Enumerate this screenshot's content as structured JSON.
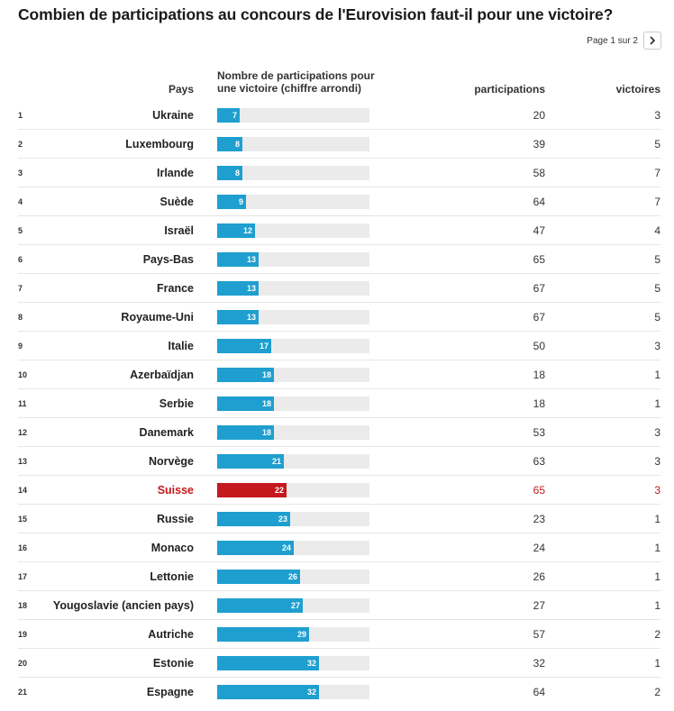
{
  "title": "Combien de participations au concours de l'Eurovision faut-il pour une victoire?",
  "pager": {
    "label": "Page 1 sur 2",
    "next_icon": "chevron-right-icon"
  },
  "colors": {
    "bar": "#1f9fcf",
    "highlight": "#c4191d",
    "track": "#ebebeb"
  },
  "columns": {
    "pays": "Pays",
    "npv": "Nombre de participations pour une victoire (chiffre arrondi)",
    "participations": "participations",
    "victoires": "victoires"
  },
  "chart_data": {
    "type": "table",
    "title": "Combien de participations au concours de l'Eurovision faut-il pour une victoire?",
    "bar_scale_max": 48,
    "highlighted": "Suisse",
    "rows": [
      {
        "rank": "1",
        "country": "Ukraine",
        "npv": 7,
        "participations": 20,
        "victoires": 3,
        "highlight": false
      },
      {
        "rank": "2",
        "country": "Luxembourg",
        "npv": 8,
        "participations": 39,
        "victoires": 5,
        "highlight": false
      },
      {
        "rank": "3",
        "country": "Irlande",
        "npv": 8,
        "participations": 58,
        "victoires": 7,
        "highlight": false
      },
      {
        "rank": "4",
        "country": "Suède",
        "npv": 9,
        "participations": 64,
        "victoires": 7,
        "highlight": false
      },
      {
        "rank": "5",
        "country": "Israël",
        "npv": 12,
        "participations": 47,
        "victoires": 4,
        "highlight": false
      },
      {
        "rank": "6",
        "country": "Pays-Bas",
        "npv": 13,
        "participations": 65,
        "victoires": 5,
        "highlight": false
      },
      {
        "rank": "7",
        "country": "France",
        "npv": 13,
        "participations": 67,
        "victoires": 5,
        "highlight": false
      },
      {
        "rank": "8",
        "country": "Royaume-Uni",
        "npv": 13,
        "participations": 67,
        "victoires": 5,
        "highlight": false
      },
      {
        "rank": "9",
        "country": "Italie",
        "npv": 17,
        "participations": 50,
        "victoires": 3,
        "highlight": false
      },
      {
        "rank": "10",
        "country": "Azerbaïdjan",
        "npv": 18,
        "participations": 18,
        "victoires": 1,
        "highlight": false
      },
      {
        "rank": "11",
        "country": "Serbie",
        "npv": 18,
        "participations": 18,
        "victoires": 1,
        "highlight": false
      },
      {
        "rank": "12",
        "country": "Danemark",
        "npv": 18,
        "participations": 53,
        "victoires": 3,
        "highlight": false
      },
      {
        "rank": "13",
        "country": "Norvège",
        "npv": 21,
        "participations": 63,
        "victoires": 3,
        "highlight": false
      },
      {
        "rank": "14",
        "country": "Suisse",
        "npv": 22,
        "participations": 65,
        "victoires": 3,
        "highlight": true
      },
      {
        "rank": "15",
        "country": "Russie",
        "npv": 23,
        "participations": 23,
        "victoires": 1,
        "highlight": false
      },
      {
        "rank": "16",
        "country": "Monaco",
        "npv": 24,
        "participations": 24,
        "victoires": 1,
        "highlight": false
      },
      {
        "rank": "17",
        "country": "Lettonie",
        "npv": 26,
        "participations": 26,
        "victoires": 1,
        "highlight": false
      },
      {
        "rank": "18",
        "country": "Yougoslavie (ancien pays)",
        "npv": 27,
        "participations": 27,
        "victoires": 1,
        "highlight": false
      },
      {
        "rank": "19",
        "country": "Autriche",
        "npv": 29,
        "participations": 57,
        "victoires": 2,
        "highlight": false
      },
      {
        "rank": "20",
        "country": "Estonie",
        "npv": 32,
        "participations": 32,
        "victoires": 1,
        "highlight": false
      },
      {
        "rank": "21",
        "country": "Espagne",
        "npv": 32,
        "participations": 64,
        "victoires": 2,
        "highlight": false
      }
    ]
  }
}
